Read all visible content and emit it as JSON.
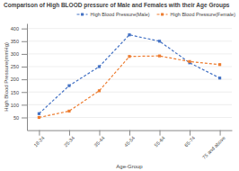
{
  "chart_data": {
    "type": "line",
    "title": "Comparison of High BLOOD pressure of Male and Females with their Age Groups",
    "xlabel": "Age-Group",
    "ylabel": "High Blood Pressure(mmHg)",
    "categories": [
      "18-24",
      "25-34",
      "35-44",
      "45-54",
      "55-64",
      "65-74",
      "75 and above"
    ],
    "series": [
      {
        "name": "High Blood Pressure(Male)",
        "color": "#4472C4",
        "values": [
          65,
          175,
          250,
          375,
          350,
          265,
          205
        ]
      },
      {
        "name": "High Blood Pressure(Female)",
        "color": "#ED7D31",
        "values": [
          50,
          75,
          155,
          290,
          292,
          270,
          258
        ]
      }
    ],
    "ylim": [
      0,
      420
    ],
    "yticks": [
      50,
      100,
      150,
      200,
      250,
      300,
      350,
      400
    ],
    "grid": true,
    "legend": "upper right",
    "marker": "square",
    "line_style": "dashed"
  }
}
